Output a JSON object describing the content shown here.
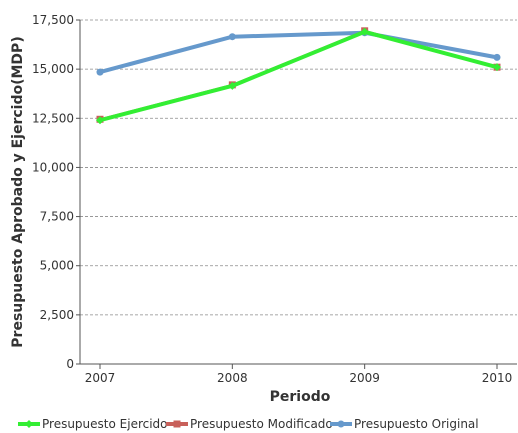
{
  "chart_data": {
    "type": "line",
    "x": [
      "2007",
      "2008",
      "2009",
      "2010"
    ],
    "xlabel": "Periodo",
    "ylabel": "Presupuesto Aprobado y Ejercido(MDP)",
    "ylim": [
      0,
      17500
    ],
    "yticks": [
      0,
      2500,
      5000,
      7500,
      10000,
      12500,
      15000,
      17500
    ],
    "ytick_labels": [
      "0",
      "2,500",
      "5,000",
      "7,500",
      "10,000",
      "12,500",
      "15,000",
      "17,500"
    ],
    "grid": true,
    "legend_position": "bottom",
    "series": [
      {
        "name": "Presupuesto Ejercido",
        "values": [
          12400,
          14150,
          16900,
          15100
        ],
        "color": "#33ee33",
        "marker": "diamond"
      },
      {
        "name": "Presupuesto Modificado",
        "values": [
          12450,
          14200,
          16950,
          15100
        ],
        "color": "#c8605a",
        "marker": "square"
      },
      {
        "name": "Presupuesto Original",
        "values": [
          14850,
          16650,
          16850,
          15600
        ],
        "color": "#6699cc",
        "marker": "circle"
      }
    ]
  }
}
